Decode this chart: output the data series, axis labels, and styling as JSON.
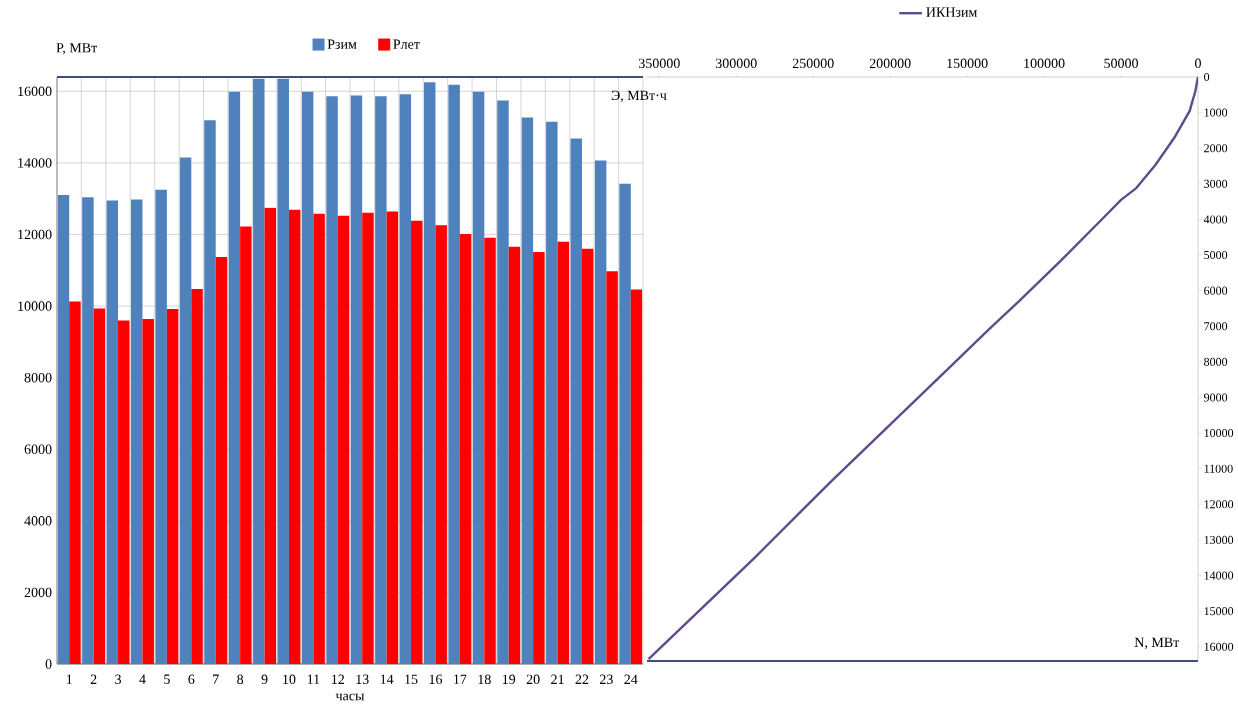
{
  "chart_data": [
    {
      "type": "bar",
      "xlabel": "часы",
      "ylabel": "P, МВт",
      "categories": [
        "1",
        "2",
        "3",
        "4",
        "5",
        "6",
        "7",
        "8",
        "9",
        "10",
        "11",
        "12",
        "13",
        "14",
        "15",
        "16",
        "17",
        "18",
        "19",
        "20",
        "21",
        "22",
        "23",
        "24"
      ],
      "series": [
        {
          "name": "Pзим",
          "color": "#4f81bd",
          "values": [
            13100,
            13040,
            12950,
            12980,
            13250,
            14150,
            15190,
            15990,
            16350,
            16350,
            15990,
            15860,
            15880,
            15860,
            15920,
            16250,
            16180,
            15990,
            15740,
            15270,
            15150,
            14680,
            14070,
            13420
          ]
        },
        {
          "name": "Pлет",
          "color": "#ff0000",
          "values": [
            10130,
            9930,
            9600,
            9640,
            9920,
            10480,
            11370,
            12220,
            12750,
            12690,
            12580,
            12520,
            12610,
            12640,
            12380,
            12260,
            12010,
            11910,
            11660,
            11510,
            11800,
            11600,
            10970,
            10460
          ]
        }
      ],
      "ylim": [
        0,
        16400
      ],
      "yticks": [
        0,
        2000,
        4000,
        6000,
        8000,
        10000,
        12000,
        14000,
        16000
      ],
      "grid": true,
      "legend": "top"
    },
    {
      "type": "line",
      "xlabel": "Э, МВт·ч",
      "ylabel": "N, МВт",
      "series": [
        {
          "name": "ИКНзим",
          "color": "#5f4b8b",
          "x": [
            0,
            1730,
            5400,
            15300,
            27700,
            40100,
            50000,
            64800,
            89600,
            114400,
            135200,
            156500,
            238500,
            288300,
            357000
          ],
          "values": [
            0,
            400,
            950,
            1700,
            2470,
            3120,
            3450,
            4100,
            5180,
            6220,
            7060,
            7950,
            11360,
            13510,
            16350
          ]
        }
      ],
      "xlim": [
        358000,
        0
      ],
      "xticks": [
        350000,
        300000,
        250000,
        200000,
        150000,
        100000,
        50000,
        0
      ],
      "ylim": [
        16400,
        0
      ],
      "yticks": [
        0,
        1000,
        2000,
        3000,
        4000,
        5000,
        6000,
        7000,
        8000,
        9000,
        10000,
        11000,
        12000,
        13000,
        14000,
        15000,
        16000
      ],
      "legend": "top"
    }
  ]
}
